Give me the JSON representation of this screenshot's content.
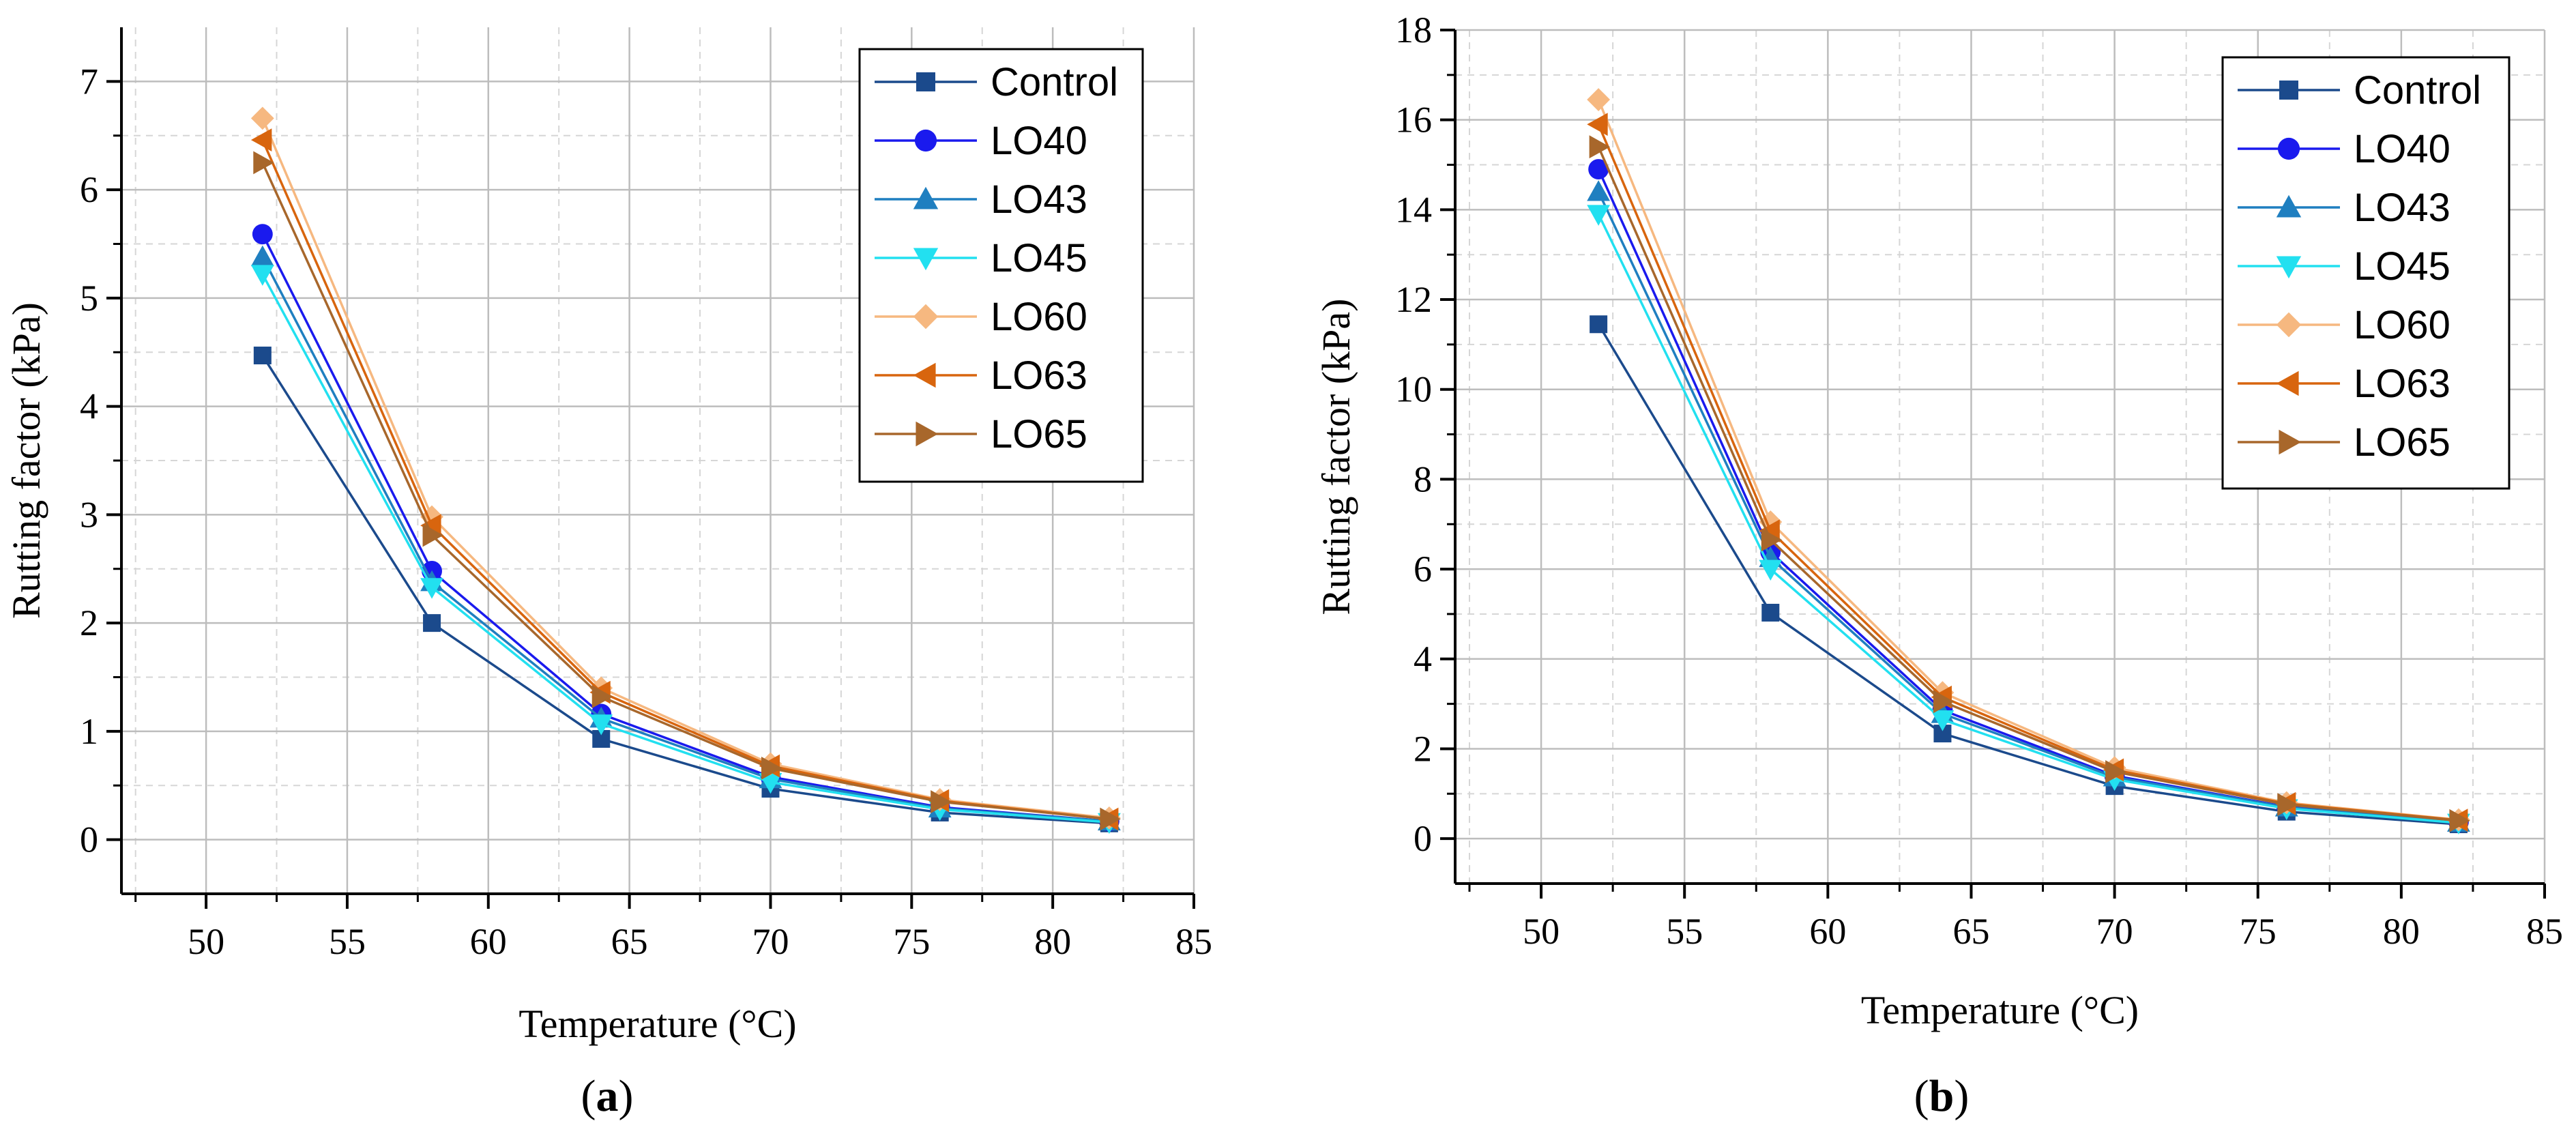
{
  "colors": {
    "Control": "#1b4a8c",
    "LO40": "#1a1aee",
    "LO43": "#1f7fc0",
    "LO45": "#22e0f0",
    "LO60": "#f6b880",
    "LO63": "#d8650e",
    "LO65": "#a8672b"
  },
  "markers": {
    "Control": "square",
    "LO40": "circle",
    "LO43": "triangle-up",
    "LO45": "triangle-down",
    "LO60": "diamond",
    "LO63": "triangle-left",
    "LO65": "triangle-right"
  },
  "captions": {
    "a": {
      "open": "(",
      "letter": "a",
      "close": ")"
    },
    "b": {
      "open": "(",
      "letter": "b",
      "close": ")"
    }
  },
  "chart_data": [
    {
      "id": "a",
      "type": "line",
      "title": "",
      "xlabel": "Temperature (°C)",
      "ylabel": "Rutting factor (kPa)",
      "xlim": [
        47,
        85
      ],
      "ylim": [
        -0.5,
        7.5
      ],
      "xticks": [
        50,
        55,
        60,
        65,
        70,
        75,
        80,
        85
      ],
      "yticks": [
        0,
        1,
        2,
        3,
        4,
        5,
        6,
        7
      ],
      "x": [
        52,
        58,
        64,
        70,
        76,
        82
      ],
      "grid": true,
      "legend_position": "top-right",
      "series": [
        {
          "name": "Control",
          "values": [
            4.47,
            2.0,
            0.93,
            0.47,
            0.25,
            0.15
          ]
        },
        {
          "name": "LO40",
          "values": [
            5.59,
            2.48,
            1.16,
            0.58,
            0.3,
            0.17
          ]
        },
        {
          "name": "LO43",
          "values": [
            5.38,
            2.38,
            1.12,
            0.56,
            0.29,
            0.17
          ]
        },
        {
          "name": "LO45",
          "values": [
            5.22,
            2.33,
            1.07,
            0.53,
            0.28,
            0.16
          ]
        },
        {
          "name": "LO60",
          "values": [
            6.66,
            2.98,
            1.4,
            0.7,
            0.37,
            0.2
          ]
        },
        {
          "name": "LO63",
          "values": [
            6.46,
            2.9,
            1.36,
            0.68,
            0.36,
            0.19
          ]
        },
        {
          "name": "LO65",
          "values": [
            6.25,
            2.81,
            1.32,
            0.66,
            0.35,
            0.19
          ]
        }
      ]
    },
    {
      "id": "b",
      "type": "line",
      "title": "",
      "xlabel": "Temperature (°C)",
      "ylabel": "Rutting factor (kPa)",
      "xlim": [
        47,
        85
      ],
      "ylim": [
        -1,
        18
      ],
      "xticks": [
        50,
        55,
        60,
        65,
        70,
        75,
        80,
        85
      ],
      "yticks": [
        0,
        2,
        4,
        6,
        8,
        10,
        12,
        14,
        16,
        18
      ],
      "x": [
        52,
        58,
        64,
        70,
        76,
        82
      ],
      "grid": true,
      "legend_position": "top-right",
      "series": [
        {
          "name": "Control",
          "values": [
            11.45,
            5.03,
            2.34,
            1.17,
            0.6,
            0.32
          ]
        },
        {
          "name": "LO40",
          "values": [
            14.9,
            6.38,
            2.86,
            1.4,
            0.71,
            0.37
          ]
        },
        {
          "name": "LO43",
          "values": [
            14.4,
            6.25,
            2.78,
            1.37,
            0.7,
            0.36
          ]
        },
        {
          "name": "LO45",
          "values": [
            13.9,
            6.0,
            2.65,
            1.32,
            0.67,
            0.35
          ]
        },
        {
          "name": "LO60",
          "values": [
            16.45,
            7.05,
            3.25,
            1.58,
            0.8,
            0.42
          ]
        },
        {
          "name": "LO63",
          "values": [
            15.9,
            6.85,
            3.15,
            1.53,
            0.78,
            0.41
          ]
        },
        {
          "name": "LO65",
          "values": [
            15.4,
            6.65,
            3.05,
            1.49,
            0.76,
            0.4
          ]
        }
      ]
    }
  ]
}
